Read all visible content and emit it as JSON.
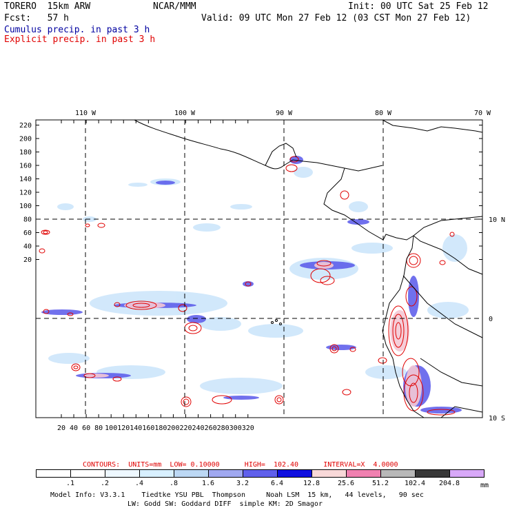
{
  "header": {
    "model": "TORERO  15km ARW",
    "org": "NCAR/MMM",
    "init": "Init: 00 UTC Sat 25 Feb 12",
    "fcst": "Fcst:   57 h",
    "valid": "Valid: 09 UTC Mon 27 Feb 12 (03 CST Mon 27 Feb 12)",
    "line_cumulus": "Cumulus precip. in past 3 h",
    "line_explicit": "Explicit precip. in past 3 h"
  },
  "axes": {
    "top_lon": [
      "110 W",
      "100 W",
      "90 W",
      "80 W",
      "70 W"
    ],
    "right_lat": [
      "10 N",
      "0",
      "10 S"
    ],
    "y_ticks": [
      "220",
      "200",
      "180",
      "160",
      "140",
      "120",
      "100",
      "80",
      "60",
      "40",
      "20"
    ],
    "x_ticks": [
      "20",
      "40",
      "60",
      "80",
      "100",
      "120",
      "140",
      "160",
      "180",
      "200",
      "220",
      "240",
      "260",
      "280",
      "300",
      "320"
    ]
  },
  "contour_info": {
    "text": "CONTOURS:  UNITS=mm  LOW= 0.10000      HIGH=  102.40      INTERVAL=X  4.0000"
  },
  "legend": {
    "labels": [
      ".1",
      ".2",
      ".4",
      ".8",
      "1.6",
      "3.2",
      "6.4",
      "12.8",
      "25.6",
      "51.2",
      "102.4",
      "204.8"
    ],
    "unit": "mm",
    "colors": [
      "#ffffff",
      "#ffffff",
      "#eef8ff",
      "#d8f0ff",
      "#bcd8f4",
      "#a0a8f0",
      "#6060ec",
      "#1010e0",
      "#f8d8d8",
      "#f080b0",
      "#b8b8b8",
      "#383838",
      "#d8a8f8"
    ]
  },
  "footer": {
    "line1": "Model Info: V3.3.1    Tiedtke YSU PBL  Thompson     Noah LSM  15 km,   44 levels,   90 sec",
    "line2": "LW: Godd SW: Goddard DIFF  simple KM: 2D Smagor"
  },
  "colors": {
    "cumulus_title": "#0000a0",
    "explicit_title": "#e00000",
    "contour_text": "#e00000",
    "contour_line": "#e00000"
  }
}
